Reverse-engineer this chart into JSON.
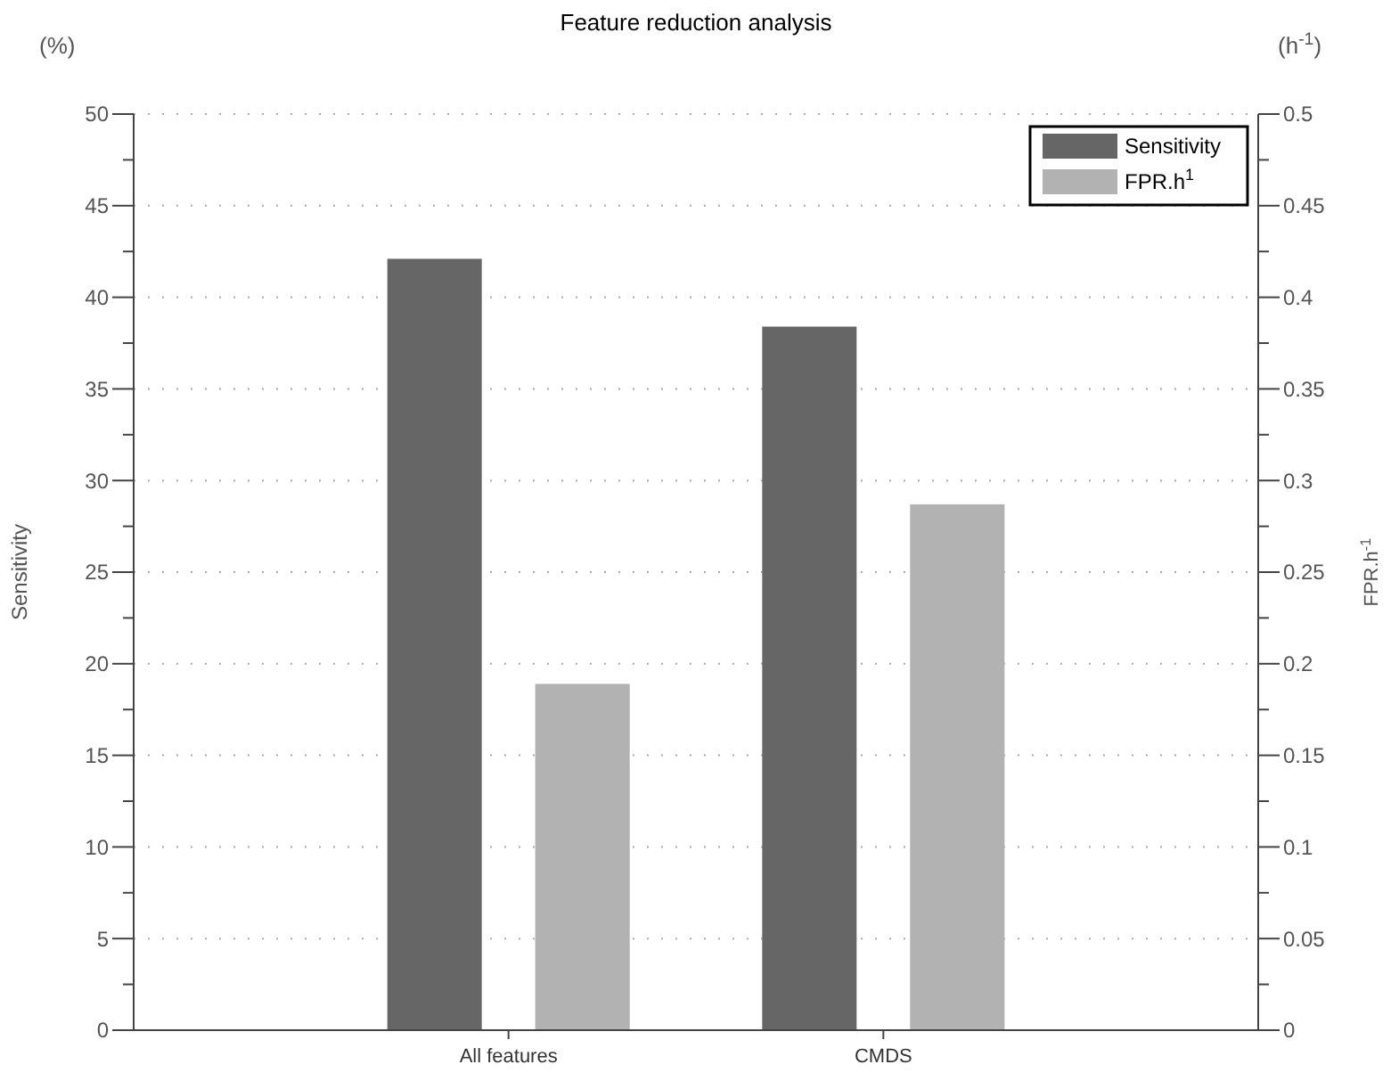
{
  "chart_data": {
    "type": "bar",
    "title": "Feature reduction analysis",
    "ylabel": "Sensitivity",
    "y2label": "FPR.h$^{-1}$",
    "annotations": [
      "(%)",
      "(h$^{-1}$)"
    ],
    "categories": [
      "All features",
      "CMDS"
    ],
    "series": [
      {
        "name": "Sensitivity",
        "color": "#666666",
        "values": [
          42.1,
          38.4
        ]
      },
      {
        "name": "FPR.h$^{1}$",
        "color": "#b2b2b2",
        "values": [
          0.189,
          0.287
        ],
        "axis": "y2"
      }
    ],
    "ylim": [
      0,
      50
    ],
    "yticks": [
      0,
      {
        "value": 2.5,
        "label": null
      },
      5,
      {
        "value": 7.5,
        "label": null
      },
      10,
      {
        "value": 12.5,
        "label": null
      },
      15,
      {
        "value": 17.5,
        "label": null
      },
      20,
      {
        "value": 22.5,
        "label": null
      },
      25,
      {
        "value": 27.5,
        "label": null
      },
      30,
      {
        "value": 32.5,
        "label": null
      },
      35,
      {
        "value": 37.5,
        "label": null
      },
      40,
      {
        "value": 42.5,
        "label": null
      },
      45,
      {
        "value": 47.5,
        "label": null
      },
      50
    ],
    "y2lim": [
      0,
      0.5
    ],
    "y2ticks": [
      0,
      {
        "value": 0.025,
        "label": null
      },
      0.05,
      {
        "value": 0.075,
        "label": null
      },
      0.1,
      {
        "value": 0.125,
        "label": null
      },
      0.15,
      {
        "value": 0.175,
        "label": null
      },
      0.2,
      {
        "value": 0.225,
        "label": null
      },
      0.25,
      {
        "value": 0.275,
        "label": null
      },
      0.3,
      {
        "value": 0.325,
        "label": null
      },
      0.35,
      {
        "value": 0.375,
        "label": null
      },
      0.4,
      {
        "value": 0.425,
        "label": null
      },
      0.45,
      {
        "value": 0.475,
        "label": null
      },
      0.5
    ],
    "grid": "y",
    "legend": "top right"
  }
}
